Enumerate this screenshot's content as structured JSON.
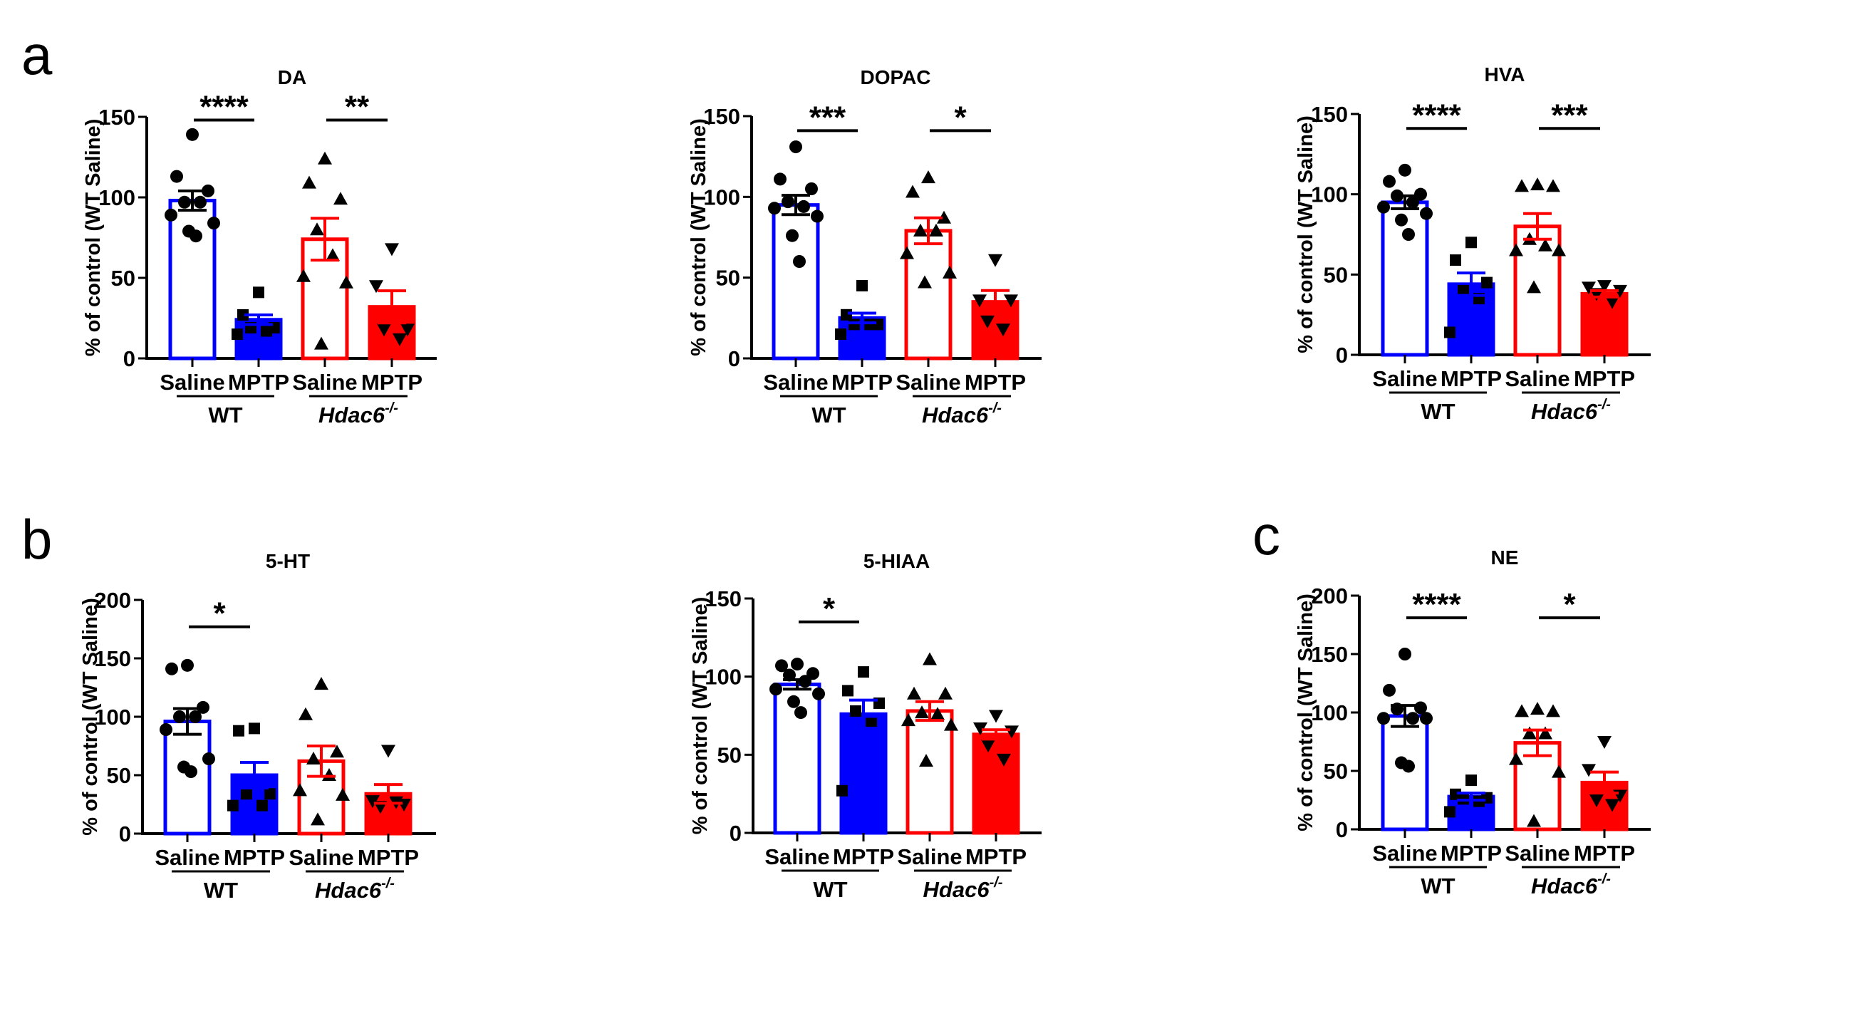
{
  "panel_letters": {
    "a": "a",
    "b": "b",
    "c": "c"
  },
  "colors": {
    "wt": "#0000ff",
    "ko": "#ff0000",
    "marker": "#000000"
  },
  "chart_data": [
    {
      "type": "bar",
      "title": "DA",
      "ylabel": "% of control  (WT Saline)",
      "ylim": [
        0,
        150
      ],
      "yticks": [
        0,
        50,
        100,
        150
      ],
      "categories": [
        "Saline",
        "MPTP",
        "Saline",
        "MPTP"
      ],
      "groups": [
        "WT",
        "Hdac6"
      ],
      "group_superscript": "-/-",
      "means": [
        98,
        24,
        74,
        32
      ],
      "sem": [
        6,
        3,
        13,
        10
      ],
      "points": [
        [
          139,
          113,
          104,
          97,
          97,
          89,
          84,
          79,
          76
        ],
        [
          41,
          27,
          19,
          19,
          17,
          15
        ],
        [
          124,
          109,
          99,
          80,
          64,
          51,
          47,
          9
        ],
        [
          68,
          45,
          18,
          18,
          12
        ]
      ],
      "significance": [
        {
          "from": 0,
          "to": 1,
          "label": "****",
          "level": 148
        },
        {
          "from": 2,
          "to": 3,
          "label": "**",
          "level": 148
        }
      ]
    },
    {
      "type": "bar",
      "title": "DOPAC",
      "ylabel": "% of control  (WT Saline)",
      "ylim": [
        0,
        150
      ],
      "yticks": [
        0,
        50,
        100,
        150
      ],
      "categories": [
        "Saline",
        "MPTP",
        "Saline",
        "MPTP"
      ],
      "groups": [
        "WT",
        "Hdac6"
      ],
      "group_superscript": "-/-",
      "means": [
        95,
        25,
        79,
        35
      ],
      "sem": [
        6,
        3,
        8,
        7
      ],
      "points": [
        [
          131,
          111,
          105,
          97,
          94,
          93,
          88,
          76,
          60
        ],
        [
          45,
          27,
          21,
          21,
          21,
          15
        ],
        [
          112,
          103,
          87,
          79,
          79,
          65,
          53,
          47
        ],
        [
          61,
          36,
          36,
          23,
          18
        ]
      ],
      "significance": [
        {
          "from": 0,
          "to": 1,
          "label": "***",
          "level": 141
        },
        {
          "from": 2,
          "to": 3,
          "label": "*",
          "level": 141
        }
      ]
    },
    {
      "type": "bar",
      "title": "HVA",
      "ylabel": "% of control  (WT Saline)",
      "ylim": [
        0,
        150
      ],
      "yticks": [
        0,
        50,
        100,
        150
      ],
      "categories": [
        "Saline",
        "MPTP",
        "Saline",
        "MPTP"
      ],
      "groups": [
        "WT",
        "Hdac6"
      ],
      "group_superscript": "-/-",
      "means": [
        95,
        44,
        80,
        38
      ],
      "sem": [
        4,
        7,
        8,
        2
      ],
      "points": [
        [
          115,
          108,
          100,
          99,
          95,
          92,
          88,
          84,
          75
        ],
        [
          70,
          59,
          45,
          40,
          35,
          14
        ],
        [
          106,
          105,
          105,
          72,
          68,
          65,
          65,
          42
        ],
        [
          43,
          42,
          40,
          38,
          33
        ]
      ],
      "significance": [
        {
          "from": 0,
          "to": 1,
          "label": "****",
          "level": 141
        },
        {
          "from": 2,
          "to": 3,
          "label": "***",
          "level": 141
        }
      ]
    },
    {
      "type": "bar",
      "title": "5-HT",
      "ylabel": "% of control  (WT Saline)",
      "ylim": [
        0,
        200
      ],
      "yticks": [
        0,
        50,
        100,
        150,
        200
      ],
      "categories": [
        "Saline",
        "MPTP",
        "Saline",
        "MPTP"
      ],
      "groups": [
        "WT",
        "Hdac6"
      ],
      "group_superscript": "-/-",
      "means": [
        96,
        50,
        62,
        34
      ],
      "sem": [
        11,
        11,
        13,
        8
      ],
      "points": [
        [
          144,
          141,
          108,
          100,
          100,
          89,
          64,
          57,
          53
        ],
        [
          90,
          88,
          34,
          34,
          24,
          24
        ],
        [
          128,
          102,
          70,
          64,
          50,
          37,
          33,
          12
        ],
        [
          71,
          28,
          25,
          23,
          27
        ]
      ],
      "significance": [
        {
          "from": 0,
          "to": 1,
          "label": "*",
          "level": 177
        }
      ]
    },
    {
      "type": "bar",
      "title": "5-HIAA",
      "ylabel": "% of control  (WT Saline)",
      "ylim": [
        0,
        150
      ],
      "yticks": [
        0,
        50,
        100,
        150
      ],
      "categories": [
        "Saline",
        "MPTP",
        "Saline",
        "MPTP"
      ],
      "groups": [
        "WT",
        "Hdac6"
      ],
      "group_superscript": "-/-",
      "means": [
        95,
        76,
        78,
        63
      ],
      "sem": [
        3,
        9,
        6,
        3
      ],
      "points": [
        [
          108,
          107,
          102,
          101,
          97,
          92,
          89,
          84,
          77
        ],
        [
          103,
          91,
          83,
          78,
          70,
          27
        ],
        [
          111,
          89,
          89,
          77,
          76,
          72,
          69,
          46
        ],
        [
          75,
          67,
          65,
          56,
          47
        ]
      ],
      "significance": [
        {
          "from": 0,
          "to": 1,
          "label": "*",
          "level": 135
        }
      ]
    },
    {
      "type": "bar",
      "title": "NE",
      "ylabel": "% of control  (WT Saline)",
      "ylim": [
        0,
        200
      ],
      "yticks": [
        0,
        50,
        100,
        150,
        200
      ],
      "categories": [
        "Saline",
        "MPTP",
        "Saline",
        "MPTP"
      ],
      "groups": [
        "WT",
        "Hdac6"
      ],
      "group_superscript": "-/-",
      "means": [
        97,
        28,
        74,
        40
      ],
      "sem": [
        9,
        3,
        11,
        9
      ],
      "points": [
        [
          150,
          119,
          104,
          103,
          95,
          95,
          95,
          57,
          54
        ],
        [
          42,
          30,
          27,
          26,
          24,
          15
        ],
        [
          103,
          101,
          101,
          82,
          82,
          60,
          49,
          7
        ],
        [
          75,
          51,
          29,
          25,
          21
        ]
      ],
      "significance": [
        {
          "from": 0,
          "to": 1,
          "label": "****",
          "level": 181
        },
        {
          "from": 2,
          "to": 3,
          "label": "*",
          "level": 181
        }
      ]
    }
  ]
}
